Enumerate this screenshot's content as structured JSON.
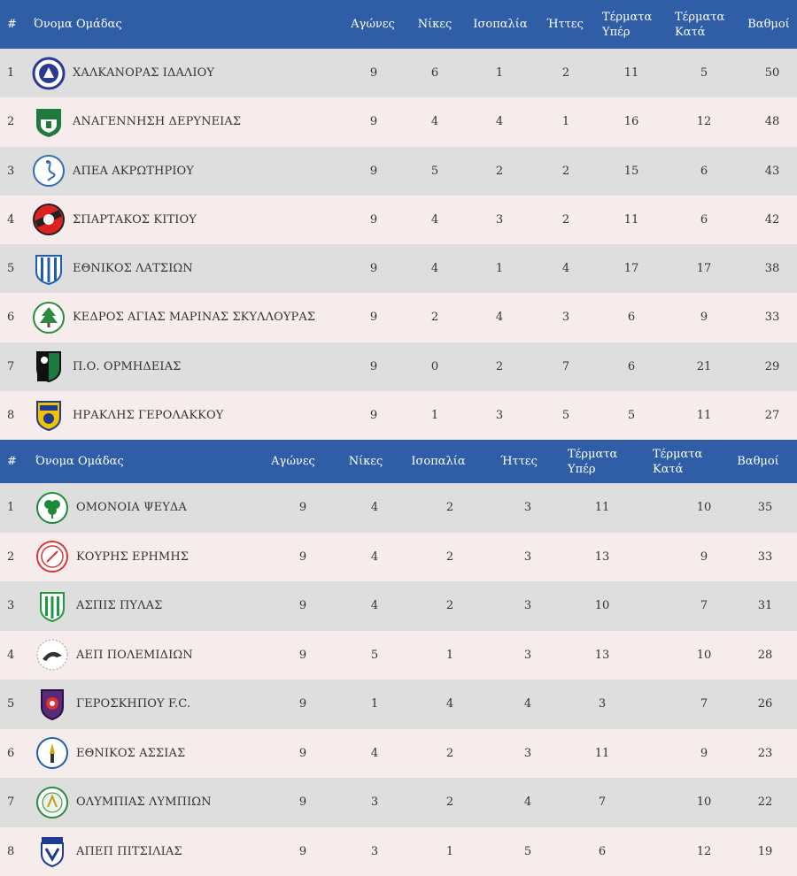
{
  "tables": [
    {
      "headers": {
        "pos": "#",
        "team": "Όνομα Ομάδας",
        "played": "Αγώνες",
        "wins": "Νίκες",
        "draws": "Ισοπαλία",
        "losses": "Ήττες",
        "goals_for": [
          "Τέρματα",
          "Υπέρ"
        ],
        "goals_against": [
          "Τέρματα",
          "Κατά"
        ],
        "points": "Βαθμοί"
      },
      "rows": [
        {
          "pos": "1",
          "team": "ΧΑΛΚΑΝΟΡΑΣ ΙΔΑΛΙΟΥ",
          "logo": "chalkanoras-crest-icon",
          "played": "9",
          "wins": "6",
          "draws": "1",
          "losses": "2",
          "gf": "11",
          "ga": "5",
          "pts": "50"
        },
        {
          "pos": "2",
          "team": "ΑΝΑΓΕΝΝΗΣΗ ΔΕΡΥΝΕΙΑΣ",
          "logo": "anagennisi-crest-icon",
          "played": "9",
          "wins": "4",
          "draws": "4",
          "losses": "1",
          "gf": "16",
          "ga": "12",
          "pts": "48"
        },
        {
          "pos": "3",
          "team": "ΑΠΕΑ ΑΚΡΩΤΗΡΙΟΥ",
          "logo": "apea-flamingo-crest-icon",
          "played": "9",
          "wins": "5",
          "draws": "2",
          "losses": "2",
          "gf": "15",
          "ga": "6",
          "pts": "43"
        },
        {
          "pos": "4",
          "team": "ΣΠΑΡΤΑΚΟΣ ΚΙΤΙΟΥ",
          "logo": "spartakos-crest-icon",
          "played": "9",
          "wins": "4",
          "draws": "3",
          "losses": "2",
          "gf": "11",
          "ga": "6",
          "pts": "42"
        },
        {
          "pos": "5",
          "team": "ΕΘΝΙΚΟΣ ΛΑΤΣΙΩΝ",
          "logo": "ethnikos-latsion-crest-icon",
          "played": "9",
          "wins": "4",
          "draws": "1",
          "losses": "4",
          "gf": "17",
          "ga": "17",
          "pts": "38"
        },
        {
          "pos": "6",
          "team": "ΚΕΔΡΟΣ ΑΓΙΑΣ ΜΑΡΙΝΑΣ ΣΚΥΛΛΟΥΡΑΣ",
          "logo": "kedros-cedar-crest-icon",
          "played": "9",
          "wins": "2",
          "draws": "4",
          "losses": "3",
          "gf": "6",
          "ga": "9",
          "pts": "33"
        },
        {
          "pos": "7",
          "team": "Π.Ο. ΟΡΜΗΔΕΙΑΣ",
          "logo": "ormideia-panther-crest-icon",
          "played": "9",
          "wins": "0",
          "draws": "2",
          "losses": "7",
          "gf": "6",
          "ga": "21",
          "pts": "29"
        },
        {
          "pos": "8",
          "team": "ΗΡΑΚΛΗΣ ΓΕΡΟΛΑΚΚΟΥ",
          "logo": "iraklis-crest-icon",
          "played": "9",
          "wins": "1",
          "draws": "3",
          "losses": "5",
          "gf": "5",
          "ga": "11",
          "pts": "27"
        }
      ]
    },
    {
      "headers": {
        "pos": "#",
        "team": "Όνομα Ομάδας",
        "played": "Αγώνες",
        "wins": "Νίκες",
        "draws": "Ισοπαλία",
        "losses": "Ήττες",
        "goals_for": [
          "Τέρματα",
          "Υπέρ"
        ],
        "goals_against": [
          "Τέρματα",
          "Κατά"
        ],
        "points": "Βαθμοί"
      },
      "rows": [
        {
          "pos": "1",
          "team": "ΟΜΟΝΟΙΑ ΨΕΥΔΑ",
          "logo": "omonoia-shamrock-crest-icon",
          "played": "9",
          "wins": "4",
          "draws": "2",
          "losses": "3",
          "gf": "11",
          "ga": "10",
          "pts": "35"
        },
        {
          "pos": "2",
          "team": "ΚΟΥΡΗΣ ΕΡΗΜΗΣ",
          "logo": "kouris-crest-icon",
          "played": "9",
          "wins": "4",
          "draws": "2",
          "losses": "3",
          "gf": "13",
          "ga": "9",
          "pts": "33"
        },
        {
          "pos": "3",
          "team": "ΑΣΠΙΣ ΠΥΛΑΣ",
          "logo": "aspis-shield-crest-icon",
          "played": "9",
          "wins": "4",
          "draws": "2",
          "losses": "3",
          "gf": "10",
          "ga": "7",
          "pts": "31"
        },
        {
          "pos": "4",
          "team": "ΑΕΠ ΠΟΛΕΜΙΔΙΩΝ",
          "logo": "aep-bird-crest-icon",
          "played": "9",
          "wins": "5",
          "draws": "1",
          "losses": "3",
          "gf": "13",
          "ga": "10",
          "pts": "28"
        },
        {
          "pos": "5",
          "team": "ΓΕΡΟΣΚΗΠΟΥ F.C.",
          "logo": "geroskipou-crest-icon",
          "played": "9",
          "wins": "1",
          "draws": "4",
          "losses": "4",
          "gf": "3",
          "ga": "7",
          "pts": "26"
        },
        {
          "pos": "6",
          "team": "ΕΘΝΙΚΟΣ ΑΣΣΙΑΣ",
          "logo": "ethnikos-assias-crest-icon",
          "played": "9",
          "wins": "4",
          "draws": "2",
          "losses": "3",
          "gf": "11",
          "ga": "9",
          "pts": "23"
        },
        {
          "pos": "7",
          "team": "ΟΛΥΜΠΙΑΣ ΛΥΜΠΙΩΝ",
          "logo": "olympias-crest-icon",
          "played": "9",
          "wins": "3",
          "draws": "2",
          "losses": "4",
          "gf": "7",
          "ga": "10",
          "pts": "22"
        },
        {
          "pos": "8",
          "team": "ΑΠΕΠ ΠΙΤΣΙΛΙΑΣ",
          "logo": "apep-crest-icon",
          "played": "9",
          "wins": "3",
          "draws": "1",
          "losses": "5",
          "gf": "6",
          "ga": "12",
          "pts": "19"
        }
      ]
    }
  ],
  "colors": {
    "header_bg": "#2f5ea6",
    "header_text": "#ffffff",
    "row_odd": "#dedede",
    "row_even": "#f7ecec"
  }
}
